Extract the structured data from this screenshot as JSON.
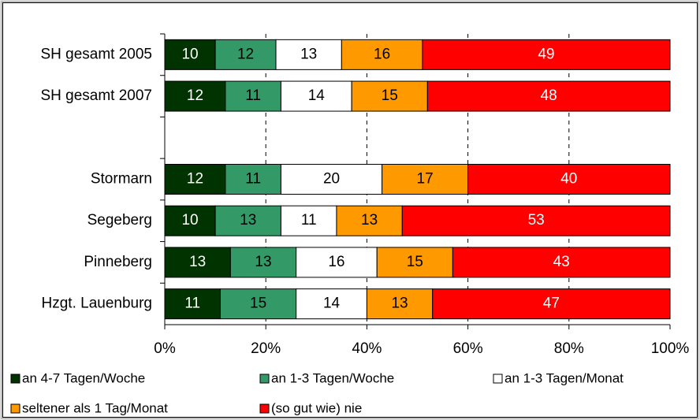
{
  "chart_data": {
    "type": "bar",
    "orientation": "horizontal",
    "stacked": true,
    "categories": [
      "SH gesamt 2005",
      "SH gesamt 2007",
      null,
      "Stormarn",
      "Segeberg",
      "Pinneberg",
      "Hzgt. Lauenburg"
    ],
    "series": [
      {
        "name": "an 4-7 Tagen/Woche",
        "color": "#003300",
        "values": [
          10,
          12,
          null,
          12,
          10,
          13,
          11
        ]
      },
      {
        "name": "an 1-3 Tagen/Woche",
        "color": "#339966",
        "values": [
          12,
          11,
          null,
          11,
          13,
          13,
          15
        ]
      },
      {
        "name": "an 1-3 Tagen/Monat",
        "color": "#ffffff",
        "values": [
          13,
          14,
          null,
          20,
          11,
          16,
          14
        ]
      },
      {
        "name": "seltener als 1 Tag/Monat",
        "color": "#ff9900",
        "values": [
          16,
          15,
          null,
          17,
          13,
          15,
          13
        ]
      },
      {
        "name": "(so gut wie) nie",
        "color": "#ff0000",
        "values": [
          49,
          48,
          null,
          40,
          53,
          43,
          47
        ]
      }
    ],
    "xlim": [
      0,
      100
    ],
    "xticks": [
      {
        "value": 0,
        "label": "0%"
      },
      {
        "value": 20,
        "label": "20%"
      },
      {
        "value": 40,
        "label": "40%"
      },
      {
        "value": 60,
        "label": "60%"
      },
      {
        "value": 80,
        "label": "80%"
      },
      {
        "value": 100,
        "label": "100%"
      }
    ],
    "grid": true,
    "legend": "bottom"
  }
}
